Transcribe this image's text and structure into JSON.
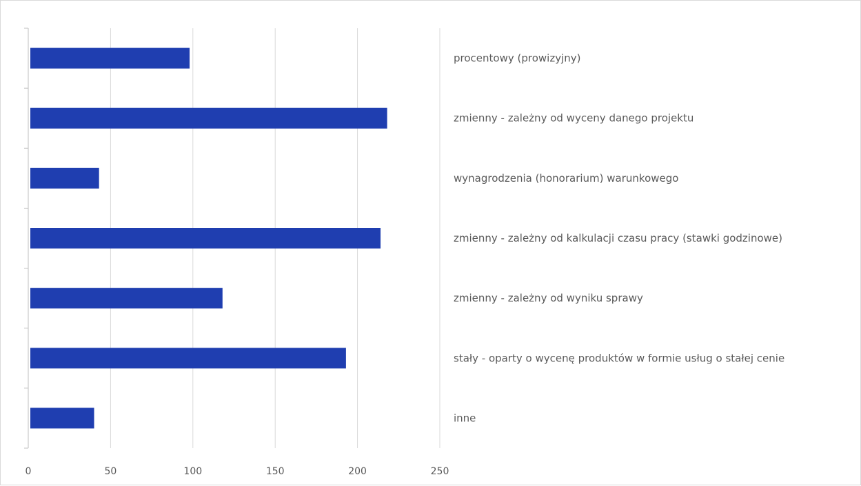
{
  "chart_data": {
    "type": "bar",
    "orientation": "horizontal",
    "categories": [
      "procentowy (prowizyjny)",
      "zmienny - zależny od wyceny danego projektu",
      "wynagrodzenia (honorarium) warunkowego",
      "zmienny - zależny od kalkulacji czasu pracy (stawki godzinowe)",
      "zmienny - zależny od wyniku sprawy",
      "stały - oparty o wycenę produktów w formie usług o stałej cenie",
      "inne"
    ],
    "values": [
      98,
      218,
      43,
      214,
      118,
      193,
      40
    ],
    "xlim": [
      0,
      250
    ],
    "xticks": [
      "0",
      "50",
      "100",
      "150",
      "200",
      "250"
    ],
    "title": "",
    "xlabel": "",
    "ylabel": "",
    "grid": "vertical",
    "legend": "none",
    "bar_color": "#1f3eb0",
    "grid_color": "#d9d9d9",
    "axis_color": "#bfbfbf",
    "text_color": "#595959"
  }
}
